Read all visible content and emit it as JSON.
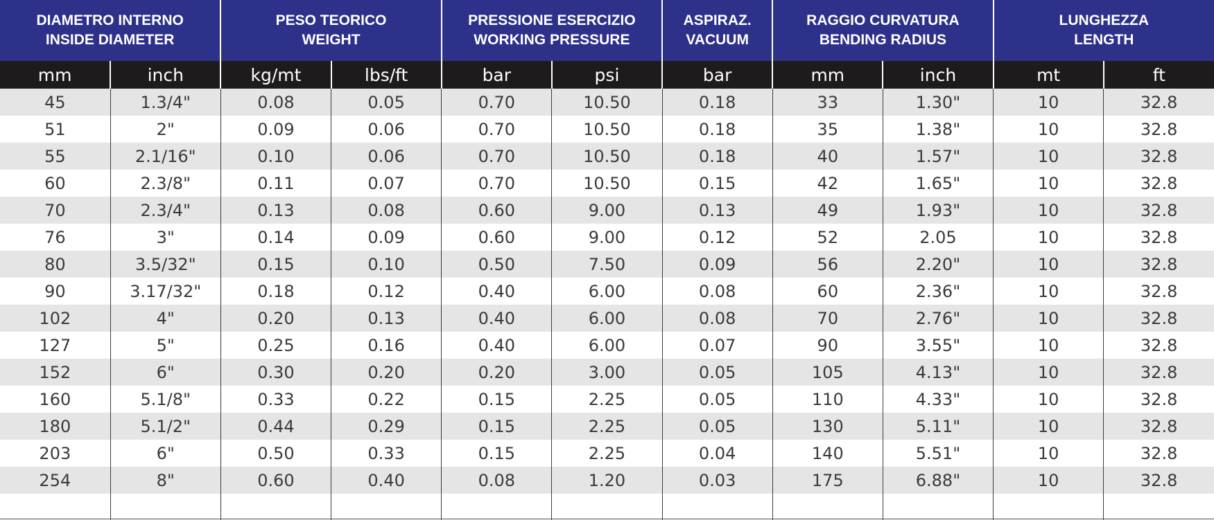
{
  "header": {
    "groups": [
      {
        "key": "inside_diameter",
        "line1": "DIAMETRO INTERNO",
        "line2": "INSIDE DIAMETER"
      },
      {
        "key": "weight",
        "line1": "PESO TEORICO",
        "line2": "WEIGHT"
      },
      {
        "key": "working_pressure",
        "line1": "PRESSIONE ESERCIZIO",
        "line2": "WORKING PRESSURE"
      },
      {
        "key": "vacuum",
        "line1": "ASPIRAZ.",
        "line2": "VACUUM"
      },
      {
        "key": "bending_radius",
        "line1": "RAGGIO CURVATURA",
        "line2": "BENDING RADIUS"
      },
      {
        "key": "length",
        "line1": "LUNGHEZZA",
        "line2": "LENGTH"
      }
    ],
    "units": [
      "mm",
      "inch",
      "kg/mt",
      "lbs/ft",
      "bar",
      "psi",
      "bar",
      "mm",
      "inch",
      "mt",
      "ft"
    ]
  },
  "rows": [
    [
      "45",
      "1.3/4\"",
      "0.08",
      "0.05",
      "0.70",
      "10.50",
      "0.18",
      "33",
      "1.30\"",
      "10",
      "32.8"
    ],
    [
      "51",
      "2\"",
      "0.09",
      "0.06",
      "0.70",
      "10.50",
      "0.18",
      "35",
      "1.38\"",
      "10",
      "32.8"
    ],
    [
      "55",
      "2.1/16\"",
      "0.10",
      "0.06",
      "0.70",
      "10.50",
      "0.18",
      "40",
      "1.57\"",
      "10",
      "32.8"
    ],
    [
      "60",
      "2.3/8\"",
      "0.11",
      "0.07",
      "0.70",
      "10.50",
      "0.15",
      "42",
      "1.65\"",
      "10",
      "32.8"
    ],
    [
      "70",
      "2.3/4\"",
      "0.13",
      "0.08",
      "0.60",
      "9.00",
      "0.13",
      "49",
      "1.93\"",
      "10",
      "32.8"
    ],
    [
      "76",
      "3\"",
      "0.14",
      "0.09",
      "0.60",
      "9.00",
      "0.12",
      "52",
      "2.05",
      "10",
      "32.8"
    ],
    [
      "80",
      "3.5/32\"",
      "0.15",
      "0.10",
      "0.50",
      "7.50",
      "0.09",
      "56",
      "2.20\"",
      "10",
      "32.8"
    ],
    [
      "90",
      "3.17/32\"",
      "0.18",
      "0.12",
      "0.40",
      "6.00",
      "0.08",
      "60",
      "2.36\"",
      "10",
      "32.8"
    ],
    [
      "102",
      "4\"",
      "0.20",
      "0.13",
      "0.40",
      "6.00",
      "0.08",
      "70",
      "2.76\"",
      "10",
      "32.8"
    ],
    [
      "127",
      "5\"",
      "0.25",
      "0.16",
      "0.40",
      "6.00",
      "0.07",
      "90",
      "3.55\"",
      "10",
      "32.8"
    ],
    [
      "152",
      "6\"",
      "0.30",
      "0.20",
      "0.20",
      "3.00",
      "0.05",
      "105",
      "4.13\"",
      "10",
      "32.8"
    ],
    [
      "160",
      "5.1/8\"",
      "0.33",
      "0.22",
      "0.15",
      "2.25",
      "0.05",
      "110",
      "4.33\"",
      "10",
      "32.8"
    ],
    [
      "180",
      "5.1/2\"",
      "0.44",
      "0.29",
      "0.15",
      "2.25",
      "0.05",
      "130",
      "5.11\"",
      "10",
      "32.8"
    ],
    [
      "203",
      "6\"",
      "0.50",
      "0.33",
      "0.15",
      "2.25",
      "0.04",
      "140",
      "5.51\"",
      "10",
      "32.8"
    ],
    [
      "254",
      "8\"",
      "0.60",
      "0.40",
      "0.08",
      "1.20",
      "0.03",
      "175",
      "6.88\"",
      "10",
      "32.8"
    ]
  ],
  "colors": {
    "group_header_bg": "#2e3189",
    "unit_header_bg": "#1e1b1d",
    "row_stripe": "#e5e5e5",
    "text": "#3a3a3a"
  }
}
